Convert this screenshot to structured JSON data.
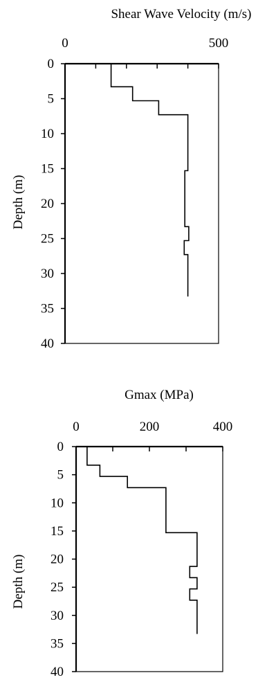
{
  "chart_data": [
    {
      "type": "line",
      "title": "Shear Wave Velocity (m/s)",
      "xlabel": "",
      "ylabel": "Depth (m)",
      "xlim": [
        0,
        500
      ],
      "ylim": [
        0,
        40
      ],
      "y_inverted": true,
      "x_axis_position": "top",
      "x_ticks": [
        "0",
        "500"
      ],
      "y_ticks": [
        "0",
        "5",
        "10",
        "15",
        "20",
        "25",
        "30",
        "35",
        "40"
      ],
      "grid": false,
      "series": [
        {
          "x": [
            150,
            150,
            220,
            220,
            305,
            305,
            400,
            400,
            390,
            390,
            403,
            403,
            388,
            388,
            400,
            400
          ],
          "y": [
            0,
            3.3,
            3.3,
            5.3,
            5.3,
            7.3,
            7.3,
            15.3,
            15.3,
            23.3,
            23.3,
            25.3,
            25.3,
            27.3,
            27.3,
            33.3
          ]
        }
      ]
    },
    {
      "type": "line",
      "title": "Gmax (MPa)",
      "xlabel": "",
      "ylabel": "Depth (m)",
      "xlim": [
        0,
        400
      ],
      "ylim": [
        0,
        40
      ],
      "y_inverted": true,
      "x_axis_position": "top",
      "x_ticks": [
        "0",
        "200",
        "400"
      ],
      "y_ticks": [
        "0",
        "5",
        "10",
        "15",
        "20",
        "25",
        "30",
        "35",
        "40"
      ],
      "grid": false,
      "series": [
        {
          "x": [
            30,
            30,
            65,
            65,
            140,
            140,
            245,
            245,
            330,
            330,
            310,
            310,
            330,
            330,
            310,
            310,
            330,
            330
          ],
          "y": [
            0,
            3.3,
            3.3,
            5.3,
            5.3,
            7.3,
            7.3,
            15.3,
            15.3,
            21.3,
            21.3,
            23.3,
            23.3,
            25.3,
            25.3,
            27.3,
            27.3,
            33.3
          ]
        }
      ]
    }
  ]
}
